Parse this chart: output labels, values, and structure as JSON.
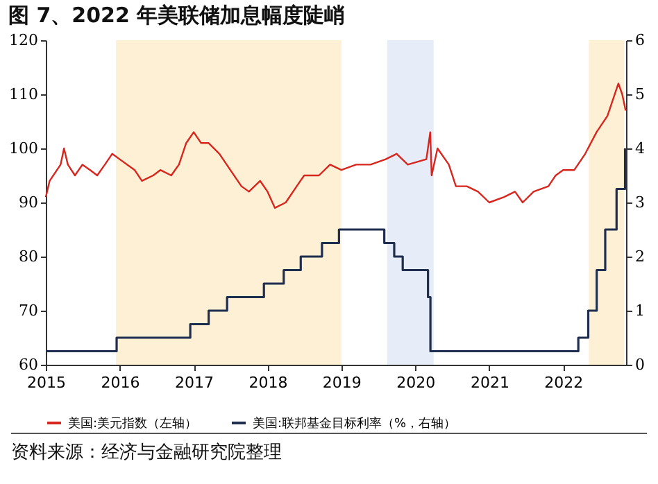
{
  "chart_data": {
    "type": "line",
    "title": "图 7、2022 年美联储加息幅度陡峭",
    "annotations": [
      "资料来源：经济与金融研究院整理"
    ],
    "xlim": [
      "2015-01-01",
      "2022-11-08"
    ],
    "xticks": [
      "2015",
      "2016",
      "2017",
      "2018",
      "2019",
      "2020",
      "2021",
      "2022"
    ],
    "ylim": [
      60,
      120
    ],
    "yticks": [
      60,
      70,
      80,
      90,
      100,
      110,
      120
    ],
    "y2lim": [
      0,
      6
    ],
    "y2ticks": [
      0,
      1,
      2,
      3,
      4,
      5,
      6
    ],
    "grid": false,
    "legend": "bottom",
    "marker": "none",
    "line_style": "solid",
    "bands": [
      {
        "axis": "x",
        "from": "2015-12-14",
        "to": "2019-01-01",
        "color": "#fdf0d5"
      },
      {
        "axis": "x",
        "from": "2019-08-15",
        "to": "2020-04-01",
        "color": "#e6ecf8"
      },
      {
        "axis": "x",
        "from": "2022-05-08",
        "to": "2022-10-30",
        "color": "#fdf0d5"
      }
    ],
    "series": [
      {
        "name": "美国:美元指数（左轴）",
        "color": "#d7261e",
        "x": [
          "2015-01-01",
          "2015-01-20",
          "2015-03-15",
          "2015-04-01",
          "2015-04-20",
          "2015-05-25",
          "2015-07-01",
          "2015-08-08",
          "2015-09-12",
          "2015-10-20",
          "2015-11-25",
          "2016-01-01",
          "2016-03-15",
          "2016-04-20",
          "2016-06-15",
          "2016-07-20",
          "2016-09-12",
          "2016-10-20",
          "2016-11-25",
          "2017-01-01",
          "2017-02-06",
          "2017-03-15",
          "2017-05-08",
          "2017-07-01",
          "2017-08-25",
          "2017-10-01",
          "2017-11-25",
          "2018-01-01",
          "2018-02-06",
          "2018-04-01",
          "2018-05-25",
          "2018-07-01",
          "2018-09-12",
          "2018-11-06",
          "2019-01-01",
          "2019-03-15",
          "2019-05-25",
          "2019-08-08",
          "2019-10-01",
          "2019-11-25",
          "2020-02-25",
          "2020-03-15",
          "2020-03-22",
          "2020-04-20",
          "2020-06-15",
          "2020-07-20",
          "2020-09-12",
          "2020-11-06",
          "2021-01-01",
          "2021-03-15",
          "2021-05-08",
          "2021-06-15",
          "2021-08-08",
          "2021-10-20",
          "2021-11-25",
          "2022-01-01",
          "2022-02-25",
          "2022-04-20",
          "2022-06-15",
          "2022-08-08",
          "2022-10-01",
          "2022-10-20",
          "2022-11-06"
        ],
        "values": [
          91,
          94,
          97,
          100,
          97,
          95,
          97,
          96,
          95,
          97,
          99,
          98,
          96,
          94,
          95,
          96,
          95,
          97,
          101,
          103,
          101,
          101,
          99,
          96,
          93,
          92,
          94,
          92,
          89,
          90,
          93,
          95,
          95,
          97,
          96,
          97,
          97,
          98,
          99,
          97,
          98,
          103,
          95,
          100,
          97,
          93,
          93,
          92,
          90,
          91,
          92,
          90,
          92,
          93,
          95,
          96,
          96,
          99,
          103,
          106,
          112,
          110,
          107
        ]
      },
      {
        "name": "美国:联邦基金目标利率（%，右轴）",
        "color": "#1f2d4e",
        "type": "step",
        "axis": "y2",
        "x": [
          "2015-01-01",
          "2015-12-17",
          "2016-12-15",
          "2017-03-16",
          "2017-06-15",
          "2017-12-14",
          "2018-03-22",
          "2018-06-14",
          "2018-09-27",
          "2018-12-20",
          "2019-08-01",
          "2019-09-19",
          "2019-10-31",
          "2020-03-04",
          "2020-03-16",
          "2022-03-17",
          "2022-05-05",
          "2022-06-16",
          "2022-07-28",
          "2022-09-22",
          "2022-11-03"
        ],
        "values": [
          0.25,
          0.5,
          0.75,
          1.0,
          1.25,
          1.5,
          1.75,
          2.0,
          2.25,
          2.5,
          2.25,
          2.0,
          1.75,
          1.25,
          0.25,
          0.5,
          1.0,
          1.75,
          2.5,
          3.25,
          4.0
        ]
      }
    ]
  }
}
